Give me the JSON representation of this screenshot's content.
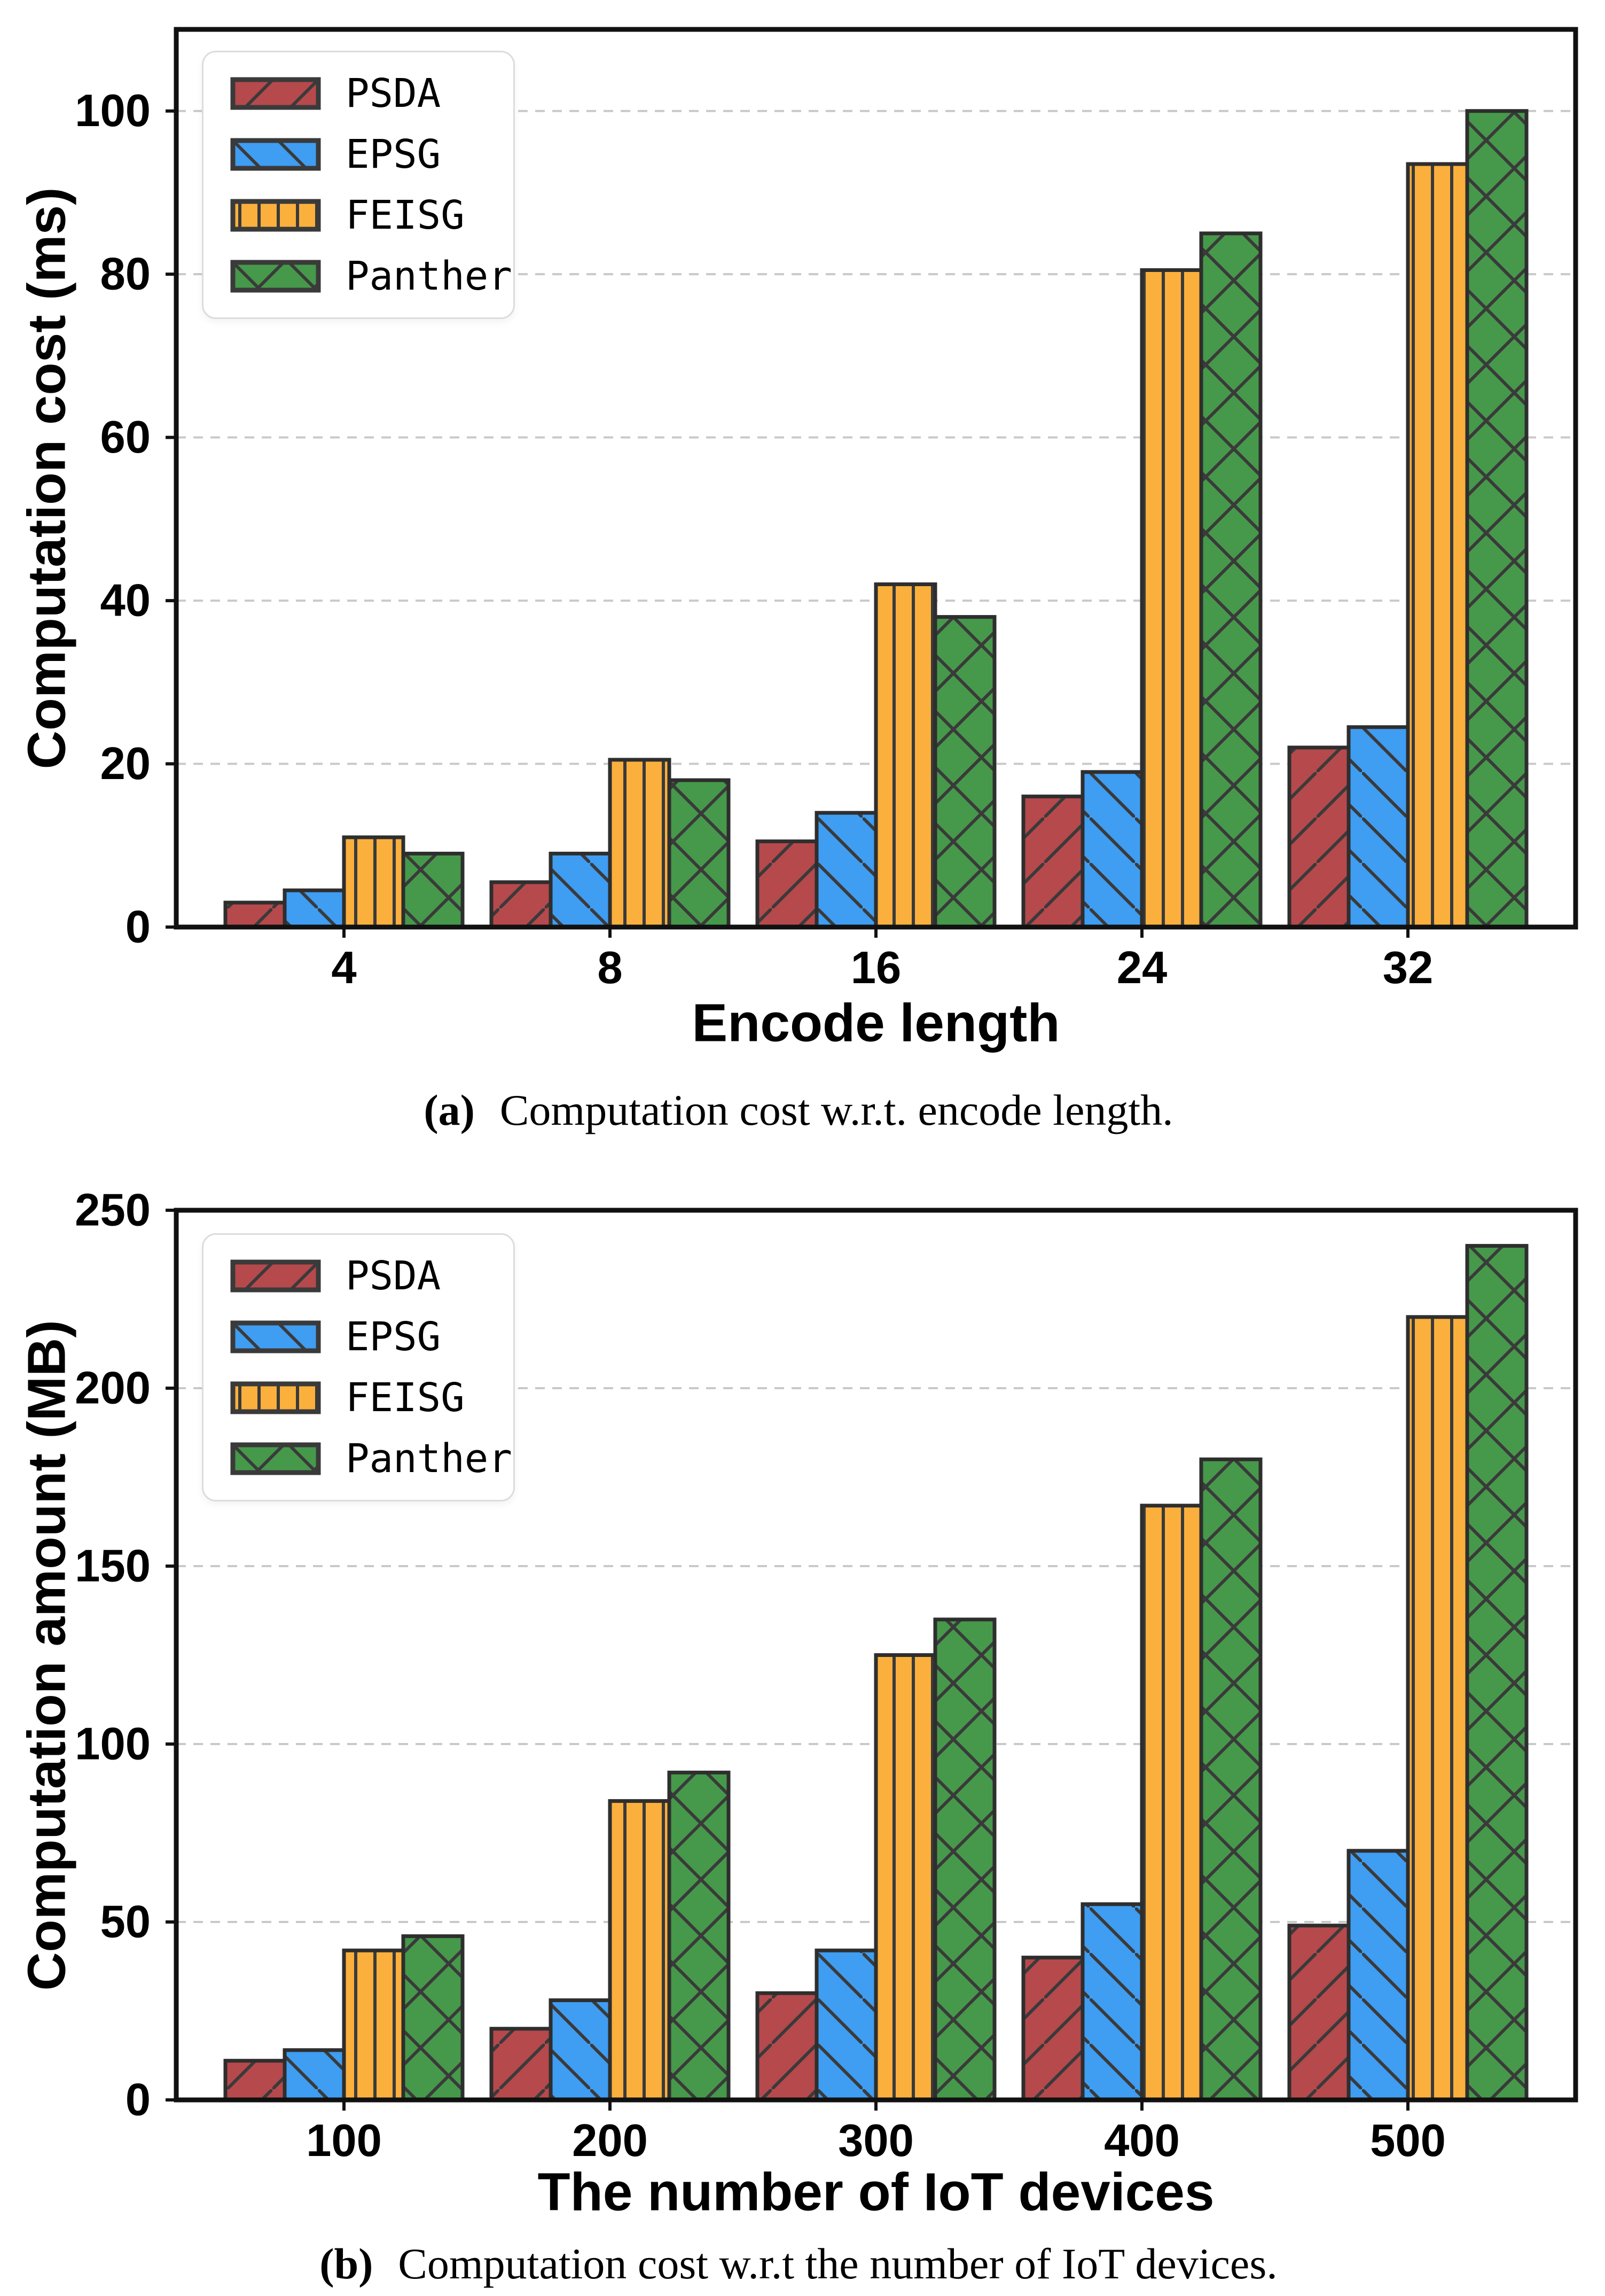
{
  "figure": {
    "background": "#ffffff"
  },
  "styles": {
    "spine": "#111111",
    "grid": "#c9c9c9",
    "bar_edge": "#2e2e2e",
    "hatch_line": "#3a3a3a",
    "legend_border": "#dcdcdc",
    "series_colors": {
      "PSDA": "#b6494c",
      "EPSG": "#3f9df2",
      "FEISG": "#fbb03d",
      "Panther": "#46994a"
    }
  },
  "chart_data": [
    {
      "type": "bar",
      "caption": {
        "tag": "(a)",
        "text": "Computation cost w.r.t. encode length."
      },
      "xlabel": "Encode length",
      "ylabel": "Computation cost (ms)",
      "categories": [
        "4",
        "8",
        "16",
        "24",
        "32"
      ],
      "yticks": [
        0,
        20,
        40,
        60,
        80,
        100
      ],
      "ylim": [
        0,
        110
      ],
      "grid": "horizontal-dashed",
      "legend_position": "upper-left",
      "series": [
        {
          "name": "PSDA",
          "color": "#b6494c",
          "hatch": "/",
          "values": [
            3,
            5.5,
            10.5,
            16,
            22
          ]
        },
        {
          "name": "EPSG",
          "color": "#3f9df2",
          "hatch": "\\",
          "values": [
            4.5,
            9,
            14,
            19,
            24.5
          ]
        },
        {
          "name": "FEISG",
          "color": "#fbb03d",
          "hatch": "|",
          "values": [
            11,
            20.5,
            42,
            80.5,
            93.5
          ]
        },
        {
          "name": "Panther",
          "color": "#46994a",
          "hatch": "x",
          "values": [
            9,
            18,
            38,
            85,
            100
          ]
        }
      ]
    },
    {
      "type": "bar",
      "caption": {
        "tag": "(b)",
        "text": "Computation cost w.r.t the number of IoT devices."
      },
      "xlabel": "The number of IoT devices",
      "ylabel": "Computation amount (MB)",
      "categories": [
        "100",
        "200",
        "300",
        "400",
        "500"
      ],
      "yticks": [
        0,
        50,
        100,
        150,
        200,
        250
      ],
      "ylim": [
        0,
        250
      ],
      "grid": "horizontal-dashed",
      "legend_position": "upper-left",
      "series": [
        {
          "name": "PSDA",
          "color": "#b6494c",
          "hatch": "/",
          "values": [
            11,
            20,
            30,
            40,
            49
          ]
        },
        {
          "name": "EPSG",
          "color": "#3f9df2",
          "hatch": "\\",
          "values": [
            14,
            28,
            42,
            55,
            70
          ]
        },
        {
          "name": "FEISG",
          "color": "#fbb03d",
          "hatch": "|",
          "values": [
            42,
            84,
            125,
            167,
            220
          ]
        },
        {
          "name": "Panther",
          "color": "#46994a",
          "hatch": "x",
          "values": [
            46,
            92,
            135,
            180,
            240
          ]
        }
      ]
    }
  ]
}
